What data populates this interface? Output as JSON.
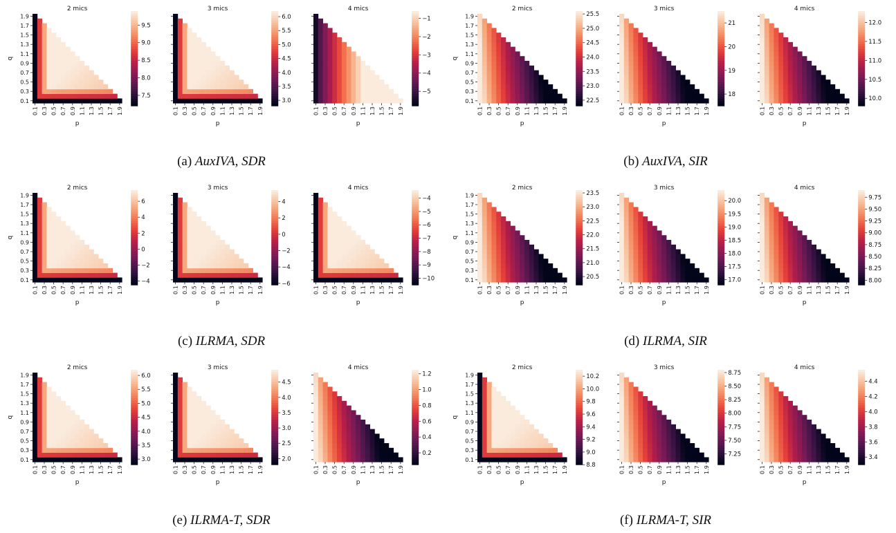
{
  "axis_labels": {
    "x": "p",
    "y": "q"
  },
  "ticks": [
    "0.1",
    "0.3",
    "0.5",
    "0.7",
    "0.9",
    "1.1",
    "1.3",
    "1.5",
    "1.7",
    "1.9"
  ],
  "panel_titles": [
    "2 mics",
    "3 mics",
    "4 mics"
  ],
  "captions": [
    {
      "prefix": "(a) ",
      "name": "AuxIVA, SDR"
    },
    {
      "prefix": "(b) ",
      "name": "AuxIVA, SIR"
    },
    {
      "prefix": "(c) ",
      "name": "ILRMA, SDR"
    },
    {
      "prefix": "(d) ",
      "name": "ILRMA, SIR"
    },
    {
      "prefix": "(e) ",
      "name": "ILRMA-T, SDR"
    },
    {
      "prefix": "(f) ",
      "name": "ILRMA-T, SIR"
    }
  ],
  "chart_data": [
    {
      "type": "heatmap",
      "title": "2 mics",
      "xlabel": "p",
      "ylabel": "q",
      "vmin": 7.2,
      "vmax": 9.9,
      "pattern": "sdr",
      "cbar_ticks": [
        "9.5",
        "9.0",
        "8.5",
        "8.0",
        "7.5"
      ],
      "cbar_values": [
        9.5,
        9.0,
        8.5,
        8.0,
        7.5
      ]
    },
    {
      "type": "heatmap",
      "title": "3 mics",
      "xlabel": "p",
      "ylabel": "",
      "vmin": 2.8,
      "vmax": 6.2,
      "pattern": "sdr",
      "cbar_ticks": [
        "6.0",
        "5.5",
        "5.0",
        "4.5",
        "4.0",
        "3.5",
        "3.0"
      ],
      "cbar_values": [
        6.0,
        5.5,
        5.0,
        4.5,
        4.0,
        3.5,
        3.0
      ]
    },
    {
      "type": "heatmap",
      "title": "4 mics",
      "xlabel": "p",
      "ylabel": "",
      "vmin": -5.8,
      "vmax": -0.6,
      "pattern": "sdr4",
      "cbar_ticks": [
        "−1",
        "−2",
        "−3",
        "−4",
        "−5"
      ],
      "cbar_values": [
        -1,
        -2,
        -3,
        -4,
        -5
      ]
    },
    {
      "type": "heatmap",
      "title": "2 mics",
      "xlabel": "p",
      "ylabel": "q",
      "vmin": 22.3,
      "vmax": 25.6,
      "pattern": "sir",
      "cbar_ticks": [
        "25.5",
        "25.0",
        "24.5",
        "24.0",
        "23.5",
        "23.0",
        "22.5"
      ],
      "cbar_values": [
        25.5,
        25.0,
        24.5,
        24.0,
        23.5,
        23.0,
        22.5
      ]
    },
    {
      "type": "heatmap",
      "title": "3 mics",
      "xlabel": "p",
      "ylabel": "",
      "vmin": 17.5,
      "vmax": 21.5,
      "pattern": "sir",
      "cbar_ticks": [
        "21",
        "20",
        "19",
        "18"
      ],
      "cbar_values": [
        21,
        20,
        19,
        18
      ]
    },
    {
      "type": "heatmap",
      "title": "4 mics",
      "xlabel": "p",
      "ylabel": "",
      "vmin": 9.8,
      "vmax": 12.3,
      "pattern": "sir",
      "cbar_ticks": [
        "12.0",
        "11.5",
        "11.0",
        "10.5",
        "10.0"
      ],
      "cbar_values": [
        12.0,
        11.5,
        11.0,
        10.5,
        10.0
      ]
    },
    {
      "type": "heatmap",
      "title": "2 mics",
      "xlabel": "p",
      "ylabel": "q",
      "vmin": -4.5,
      "vmax": 7.4,
      "pattern": "sdr",
      "cbar_ticks": [
        "6",
        "4",
        "2",
        "0",
        "−2",
        "−4"
      ],
      "cbar_values": [
        6,
        4,
        2,
        0,
        -2,
        -4
      ]
    },
    {
      "type": "heatmap",
      "title": "3 mics",
      "xlabel": "p",
      "ylabel": "",
      "vmin": -6.2,
      "vmax": 5.4,
      "pattern": "sdr",
      "cbar_ticks": [
        "4",
        "2",
        "0",
        "−2",
        "−4",
        "−6"
      ],
      "cbar_values": [
        4,
        2,
        0,
        -2,
        -4,
        -6
      ]
    },
    {
      "type": "heatmap",
      "title": "4 mics",
      "xlabel": "p",
      "ylabel": "",
      "vmin": -10.5,
      "vmax": -3.4,
      "pattern": "sdr",
      "cbar_ticks": [
        "−4",
        "−5",
        "−6",
        "−7",
        "−8",
        "−9",
        "−10"
      ],
      "cbar_values": [
        -4,
        -5,
        -6,
        -7,
        -8,
        -9,
        -10
      ]
    },
    {
      "type": "heatmap",
      "title": "2 mics",
      "xlabel": "p",
      "ylabel": "q",
      "vmin": 20.2,
      "vmax": 23.6,
      "pattern": "sir",
      "cbar_ticks": [
        "23.5",
        "23.0",
        "22.5",
        "22.0",
        "21.5",
        "21.0",
        "20.5"
      ],
      "cbar_values": [
        23.5,
        23.0,
        22.5,
        22.0,
        21.5,
        21.0,
        20.5
      ]
    },
    {
      "type": "heatmap",
      "title": "3 mics",
      "xlabel": "p",
      "ylabel": "",
      "vmin": 16.8,
      "vmax": 20.4,
      "pattern": "sir",
      "cbar_ticks": [
        "20.0",
        "19.5",
        "19.0",
        "18.5",
        "18.0",
        "17.5",
        "17.0"
      ],
      "cbar_values": [
        20.0,
        19.5,
        19.0,
        18.5,
        18.0,
        17.5,
        17.0
      ]
    },
    {
      "type": "heatmap",
      "title": "4 mics",
      "xlabel": "p",
      "ylabel": "",
      "vmin": 7.9,
      "vmax": 9.9,
      "pattern": "sir",
      "cbar_ticks": [
        "9.75",
        "9.50",
        "9.25",
        "9.00",
        "8.75",
        "8.50",
        "8.25",
        "8.00"
      ],
      "cbar_values": [
        9.75,
        9.5,
        9.25,
        9.0,
        8.75,
        8.5,
        8.25,
        8.0
      ]
    },
    {
      "type": "heatmap",
      "title": "2 mics",
      "xlabel": "p",
      "ylabel": "q",
      "vmin": 2.8,
      "vmax": 6.2,
      "pattern": "sdr",
      "cbar_ticks": [
        "6.0",
        "5.5",
        "5.0",
        "4.5",
        "4.0",
        "3.5",
        "3.0"
      ],
      "cbar_values": [
        6.0,
        5.5,
        5.0,
        4.5,
        4.0,
        3.5,
        3.0
      ]
    },
    {
      "type": "heatmap",
      "title": "3 mics",
      "xlabel": "p",
      "ylabel": "",
      "vmin": 1.8,
      "vmax": 4.9,
      "pattern": "sdr",
      "cbar_ticks": [
        "4.5",
        "4.0",
        "3.5",
        "3.0",
        "2.5",
        "2.0"
      ],
      "cbar_values": [
        4.5,
        4.0,
        3.5,
        3.0,
        2.5,
        2.0
      ]
    },
    {
      "type": "heatmap",
      "title": "4 mics",
      "xlabel": "p",
      "ylabel": "",
      "vmin": 0.05,
      "vmax": 1.25,
      "pattern": "sir",
      "cbar_ticks": [
        "1.2",
        "1.0",
        "0.8",
        "0.6",
        "0.4",
        "0.2"
      ],
      "cbar_values": [
        1.2,
        1.0,
        0.8,
        0.6,
        0.4,
        0.2
      ]
    },
    {
      "type": "heatmap",
      "title": "2 mics",
      "xlabel": "p",
      "ylabel": "q",
      "vmin": 8.8,
      "vmax": 10.3,
      "pattern": "sdr",
      "cbar_ticks": [
        "10.2",
        "10.0",
        "9.8",
        "9.6",
        "9.4",
        "9.2",
        "9.0",
        "8.8"
      ],
      "cbar_values": [
        10.2,
        10.0,
        9.8,
        9.6,
        9.4,
        9.2,
        9.0,
        8.8
      ]
    },
    {
      "type": "heatmap",
      "title": "3 mics",
      "xlabel": "p",
      "ylabel": "",
      "vmin": 7.05,
      "vmax": 8.8,
      "pattern": "sir",
      "cbar_ticks": [
        "8.75",
        "8.50",
        "8.25",
        "8.00",
        "7.75",
        "7.50",
        "7.25"
      ],
      "cbar_values": [
        8.75,
        8.5,
        8.25,
        8.0,
        7.75,
        7.5,
        7.25
      ]
    },
    {
      "type": "heatmap",
      "title": "4 mics",
      "xlabel": "p",
      "ylabel": "",
      "vmin": 3.3,
      "vmax": 4.55,
      "pattern": "sir",
      "cbar_ticks": [
        "4.4",
        "4.2",
        "4.0",
        "3.8",
        "3.6",
        "3.4"
      ],
      "cbar_values": [
        4.4,
        4.2,
        4.0,
        3.8,
        3.6,
        3.4
      ]
    }
  ]
}
